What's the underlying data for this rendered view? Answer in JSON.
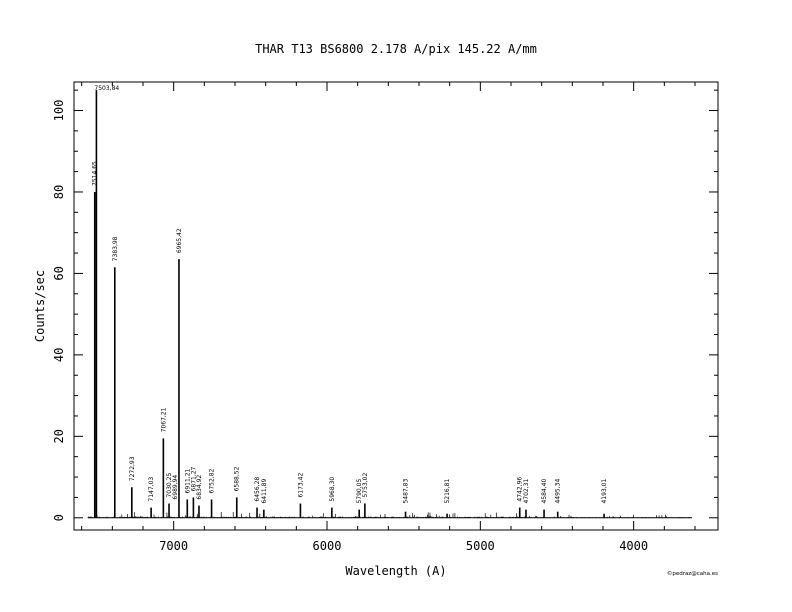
{
  "chart_data": {
    "type": "line",
    "title": "THAR  T13  BS6800  2.178 A/pix  145.22 A/mm",
    "xlabel": "Wavelength (A)",
    "ylabel": "Counts/sec",
    "credit": "©pedraz@caha.es",
    "xlim": [
      7650,
      3450
    ],
    "ylim": [
      -3,
      107
    ],
    "x_reversed": true,
    "grid": false,
    "x_ticks": [
      7000,
      6000,
      5000,
      4000
    ],
    "x_tick_labels": [
      "7000",
      "6000",
      "5000",
      "4000"
    ],
    "y_ticks": [
      0,
      20,
      40,
      60,
      80,
      100
    ],
    "y_tick_labels": [
      "0",
      "20",
      "40",
      "60",
      "80",
      "100"
    ],
    "data_range": [
      7560,
      3620
    ],
    "lines": [
      {
        "x": 7514.65,
        "y": 80
      },
      {
        "x": 7503.84,
        "y": 105
      },
      {
        "x": 7383.98,
        "y": 61.5
      },
      {
        "x": 7272.93,
        "y": 7.5
      },
      {
        "x": 7147.03,
        "y": 2.5
      },
      {
        "x": 7067.21,
        "y": 19.5
      },
      {
        "x": 7030.25,
        "y": 3.5
      },
      {
        "x": 6965.42,
        "y": 63.5
      },
      {
        "x": 6911.21,
        "y": 4.5
      },
      {
        "x": 6871.27,
        "y": 5
      },
      {
        "x": 6834.92,
        "y": 3
      },
      {
        "x": 6752.82,
        "y": 4.5
      },
      {
        "x": 6588.52,
        "y": 5
      },
      {
        "x": 6456.28,
        "y": 2.5
      },
      {
        "x": 6411.89,
        "y": 2
      },
      {
        "x": 6173.42,
        "y": 3.5
      },
      {
        "x": 5968.3,
        "y": 2.5
      },
      {
        "x": 5790.05,
        "y": 2
      },
      {
        "x": 5753.02,
        "y": 3.5
      },
      {
        "x": 5487.83,
        "y": 1.5
      },
      {
        "x": 5216.81,
        "y": 1
      },
      {
        "x": 4742.96,
        "y": 2.5
      },
      {
        "x": 4702.31,
        "y": 2
      },
      {
        "x": 4584.4,
        "y": 2
      },
      {
        "x": 4495.34,
        "y": 1.5
      },
      {
        "x": 4193.01,
        "y": 1
      }
    ],
    "annotations": [
      {
        "text": "7503,84",
        "x": 7503.84,
        "rotate": false
      },
      {
        "text": "7514,65",
        "x": 7514.65,
        "rotate": true
      },
      {
        "text": "7383,98",
        "x": 7383.98,
        "rotate": true
      },
      {
        "text": "6965,42",
        "x": 6965.42,
        "rotate": true
      },
      {
        "text": "7067,21",
        "x": 7067.21,
        "rotate": true
      },
      {
        "text": "7272,93",
        "x": 7272.93,
        "rotate": true
      },
      {
        "text": "7147,03",
        "x": 7147.03,
        "rotate": true
      },
      {
        "text": "7030,25",
        "x": 7030.25,
        "rotate": true
      },
      {
        "text": "6989,94",
        "x": 6989.94,
        "rotate": true
      },
      {
        "text": "6911,21",
        "x": 6911.21,
        "rotate": true
      },
      {
        "text": "6871,27",
        "x": 6871.27,
        "rotate": true
      },
      {
        "text": "6834,92",
        "x": 6834.92,
        "rotate": true
      },
      {
        "text": "6752,82",
        "x": 6752.82,
        "rotate": true
      },
      {
        "text": "6588,52",
        "x": 6588.52,
        "rotate": true
      },
      {
        "text": "6456,28",
        "x": 6456.28,
        "rotate": true
      },
      {
        "text": "6411,89",
        "x": 6411.89,
        "rotate": true
      },
      {
        "text": "6173,42",
        "x": 6173.42,
        "rotate": true
      },
      {
        "text": "5968,30",
        "x": 5968.3,
        "rotate": true
      },
      {
        "text": "5790,05",
        "x": 5790.05,
        "rotate": true
      },
      {
        "text": "5753,02",
        "x": 5753.02,
        "rotate": true
      },
      {
        "text": "5487,83",
        "x": 5487.83,
        "rotate": true
      },
      {
        "text": "5216,81",
        "x": 5216.81,
        "rotate": true
      },
      {
        "text": "4742,96",
        "x": 4742.96,
        "rotate": true
      },
      {
        "text": "4702,31",
        "x": 4702.31,
        "rotate": true
      },
      {
        "text": "4584,40",
        "x": 4584.4,
        "rotate": true
      },
      {
        "text": "4495,34",
        "x": 4495.34,
        "rotate": true
      },
      {
        "text": "4193,01",
        "x": 4193.01,
        "rotate": true
      }
    ]
  }
}
